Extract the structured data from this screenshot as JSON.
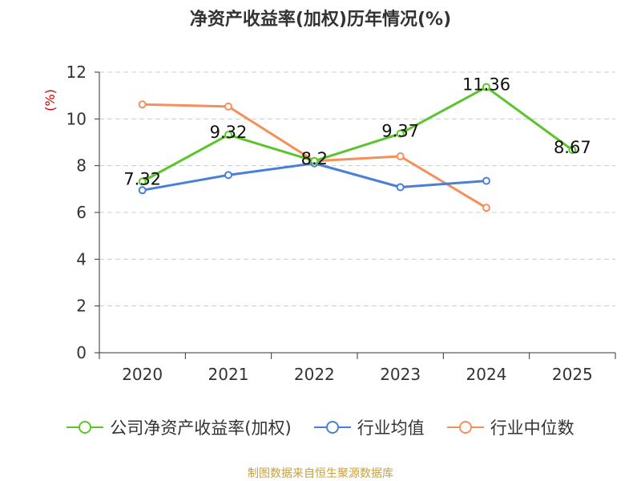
{
  "title": "净资产收益率(加权)历年情况(%)",
  "source": "制图数据来自恒生聚源数据库",
  "colors": {
    "company": "#5cc52b",
    "industry_avg": "#4a7fd8",
    "industry_median": "#f5905a",
    "axis": "#333333",
    "grid": "#cccccc",
    "ylabel": "#cc0000",
    "source": "#c8a040"
  },
  "chart_data": {
    "type": "line",
    "title": "净资产收益率(加权)历年情况(%)",
    "ylabel": "(%)",
    "xlabel": "",
    "categories": [
      "2020",
      "2021",
      "2022",
      "2023",
      "2024",
      "2025"
    ],
    "ylim": [
      0,
      12
    ],
    "yticks": [
      0,
      2,
      4,
      6,
      8,
      10,
      12
    ],
    "grid": true,
    "legend_position": "bottom",
    "series": [
      {
        "name": "公司净资产收益率(加权)",
        "color": "#5cc52b",
        "values": [
          7.32,
          9.32,
          8.2,
          9.37,
          11.36,
          8.67
        ],
        "labels": [
          "7.32",
          "9.32",
          "8.2",
          "9.37",
          "11.36",
          "8.67"
        ],
        "show_labels": true
      },
      {
        "name": "行业均值",
        "color": "#4a7fd8",
        "values": [
          6.95,
          7.6,
          8.1,
          7.08,
          7.35,
          null
        ],
        "show_labels": false
      },
      {
        "name": "行业中位数",
        "color": "#f5905a",
        "values": [
          10.62,
          10.53,
          8.2,
          8.4,
          6.2,
          null
        ],
        "show_labels": false
      }
    ]
  }
}
